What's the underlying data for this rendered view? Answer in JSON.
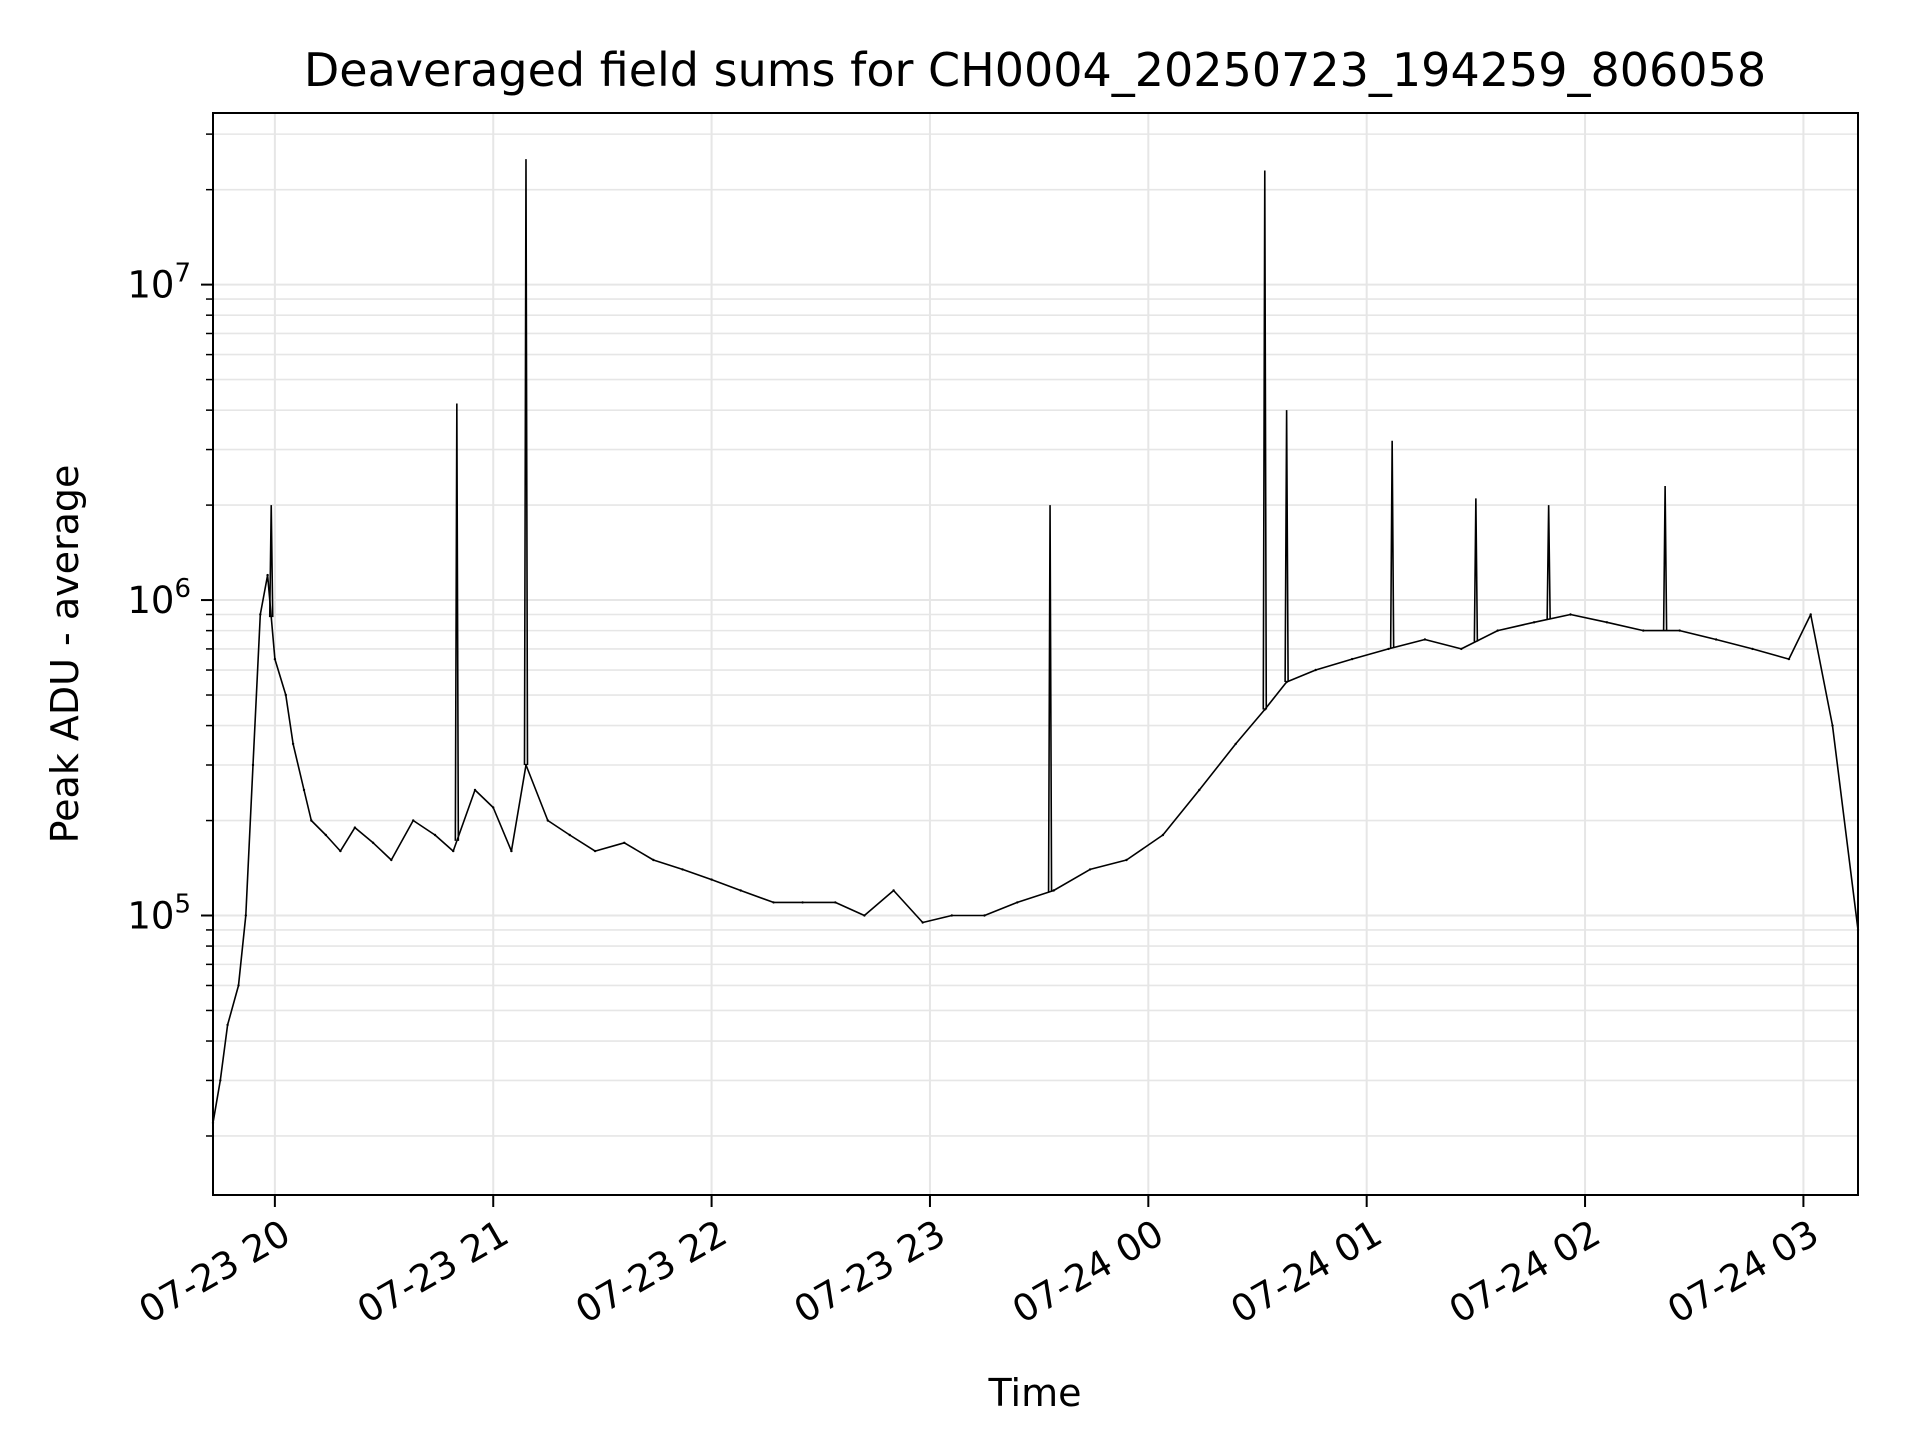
{
  "chart_data": {
    "type": "line",
    "title": "Deaveraged field sums for CH0004_20250723_194259_806058",
    "xlabel": "Time",
    "ylabel": "Peak ADU - average",
    "yscale": "log",
    "ylim": [
      13000,
      35000000
    ],
    "xlim": [
      "2025-07-23 19:43",
      "2025-07-24 03:15"
    ],
    "grid": true,
    "xticks": [
      {
        "value": "2025-07-23 20:00",
        "label": "07-23 20"
      },
      {
        "value": "2025-07-23 21:00",
        "label": "07-23 21"
      },
      {
        "value": "2025-07-23 22:00",
        "label": "07-23 22"
      },
      {
        "value": "2025-07-23 23:00",
        "label": "07-23 23"
      },
      {
        "value": "2025-07-24 00:00",
        "label": "07-24 00"
      },
      {
        "value": "2025-07-24 01:00",
        "label": "07-24 01"
      },
      {
        "value": "2025-07-24 02:00",
        "label": "07-24 02"
      },
      {
        "value": "2025-07-24 03:00",
        "label": "07-24 03"
      }
    ],
    "yticks": [
      {
        "value": 100000,
        "base": "10",
        "exp": "5"
      },
      {
        "value": 1000000,
        "base": "10",
        "exp": "6"
      },
      {
        "value": 10000000,
        "base": "10",
        "exp": "7"
      }
    ],
    "series": [
      {
        "color": "#000000",
        "x": [
          "2025-07-23 19:43",
          "2025-07-23 19:45",
          "2025-07-23 19:47",
          "2025-07-23 19:50",
          "2025-07-23 19:52",
          "2025-07-23 19:54",
          "2025-07-23 19:56",
          "2025-07-23 19:58",
          "2025-07-23 20:00",
          "2025-07-23 20:03",
          "2025-07-23 20:05",
          "2025-07-23 20:08",
          "2025-07-23 20:10",
          "2025-07-23 20:14",
          "2025-07-23 20:18",
          "2025-07-23 20:22",
          "2025-07-23 20:27",
          "2025-07-23 20:32",
          "2025-07-23 20:38",
          "2025-07-23 20:44",
          "2025-07-23 20:49",
          "2025-07-23 20:55",
          "2025-07-23 21:00",
          "2025-07-23 21:05",
          "2025-07-23 21:09",
          "2025-07-23 21:15",
          "2025-07-23 21:21",
          "2025-07-23 21:28",
          "2025-07-23 21:36",
          "2025-07-23 21:44",
          "2025-07-23 21:52",
          "2025-07-23 22:00",
          "2025-07-23 22:08",
          "2025-07-23 22:17",
          "2025-07-23 22:25",
          "2025-07-23 22:34",
          "2025-07-23 22:42",
          "2025-07-23 22:50",
          "2025-07-23 22:58",
          "2025-07-23 23:06",
          "2025-07-23 23:15",
          "2025-07-23 23:24",
          "2025-07-23 23:34",
          "2025-07-23 23:44",
          "2025-07-23 23:54",
          "2025-07-24 00:04",
          "2025-07-24 00:14",
          "2025-07-24 00:24",
          "2025-07-24 00:32",
          "2025-07-24 00:38",
          "2025-07-24 00:46",
          "2025-07-24 00:56",
          "2025-07-24 01:06",
          "2025-07-24 01:16",
          "2025-07-24 01:26",
          "2025-07-24 01:36",
          "2025-07-24 01:46",
          "2025-07-24 01:56",
          "2025-07-24 02:06",
          "2025-07-24 02:16",
          "2025-07-24 02:26",
          "2025-07-24 02:36",
          "2025-07-24 02:46",
          "2025-07-24 02:56",
          "2025-07-24 03:02",
          "2025-07-24 03:08",
          "2025-07-24 03:15"
        ],
        "y": [
          22000,
          30000,
          45000,
          60000,
          100000,
          300000,
          900000,
          1200000,
          650000,
          500000,
          350000,
          250000,
          200000,
          180000,
          160000,
          190000,
          170000,
          150000,
          200000,
          180000,
          160000,
          250000,
          220000,
          160000,
          300000,
          200000,
          180000,
          160000,
          170000,
          150000,
          140000,
          130000,
          120000,
          110000,
          110000,
          110000,
          100000,
          120000,
          95000,
          100000,
          100000,
          110000,
          120000,
          140000,
          150000,
          180000,
          250000,
          350000,
          450000,
          550000,
          600000,
          650000,
          700000,
          750000,
          700000,
          800000,
          850000,
          900000,
          850000,
          800000,
          800000,
          750000,
          700000,
          650000,
          900000,
          400000,
          90000
        ]
      }
    ],
    "spikes": [
      {
        "x": "2025-07-23 19:59",
        "y": 2000000
      },
      {
        "x": "2025-07-23 20:50",
        "y": 4200000
      },
      {
        "x": "2025-07-23 21:09",
        "y": 25000000
      },
      {
        "x": "2025-07-23 23:33",
        "y": 2000000
      },
      {
        "x": "2025-07-24 00:32",
        "y": 23000000
      },
      {
        "x": "2025-07-24 00:38",
        "y": 4000000
      },
      {
        "x": "2025-07-24 01:07",
        "y": 3200000
      },
      {
        "x": "2025-07-24 01:30",
        "y": 2100000
      },
      {
        "x": "2025-07-24 01:50",
        "y": 2000000
      },
      {
        "x": "2025-07-24 02:22",
        "y": 2300000
      }
    ]
  }
}
